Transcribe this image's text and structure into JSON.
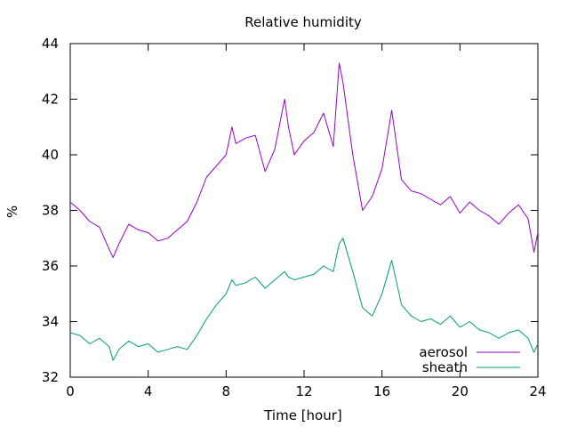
{
  "chart_data": {
    "type": "line",
    "title": "Relative humidity",
    "xlabel": "Time [hour]",
    "ylabel": "%",
    "xlim": [
      0,
      24
    ],
    "ylim": [
      32,
      44
    ],
    "xticks": [
      0,
      4,
      8,
      12,
      16,
      20,
      24
    ],
    "yticks": [
      32,
      34,
      36,
      38,
      40,
      42,
      44
    ],
    "grid": false,
    "legend_position": "bottom-right",
    "series": [
      {
        "name": "aerosol",
        "color": "#9400d3",
        "x": [
          0,
          0.5,
          1,
          1.5,
          2,
          2.2,
          2.5,
          3,
          3.5,
          4,
          4.5,
          5,
          5.5,
          6,
          6.5,
          7,
          7.5,
          8,
          8.3,
          8.5,
          9,
          9.5,
          10,
          10.5,
          11,
          11.2,
          11.5,
          12,
          12.5,
          13,
          13.5,
          13.8,
          14,
          14.5,
          15,
          15.5,
          16,
          16.5,
          17,
          17.5,
          18,
          18.5,
          19,
          19.5,
          20,
          20.5,
          21,
          21.5,
          22,
          22.5,
          23,
          23.5,
          23.8,
          24
        ],
        "y": [
          38.3,
          38.0,
          37.6,
          37.4,
          36.6,
          36.3,
          36.8,
          37.5,
          37.3,
          37.2,
          36.9,
          37.0,
          37.3,
          37.6,
          38.3,
          39.2,
          39.6,
          40.0,
          41.0,
          40.4,
          40.6,
          40.7,
          39.4,
          40.2,
          42.0,
          41.0,
          40.0,
          40.5,
          40.8,
          41.5,
          40.3,
          43.3,
          42.6,
          40.0,
          38.0,
          38.5,
          39.5,
          41.6,
          39.1,
          38.7,
          38.6,
          38.4,
          38.2,
          38.5,
          37.9,
          38.3,
          38.0,
          37.8,
          37.5,
          37.9,
          38.2,
          37.7,
          36.5,
          37.2
        ]
      },
      {
        "name": "sheath",
        "color": "#009e73",
        "x": [
          0,
          0.5,
          1,
          1.5,
          2,
          2.2,
          2.5,
          3,
          3.5,
          4,
          4.5,
          5,
          5.5,
          6,
          6.5,
          7,
          7.5,
          8,
          8.3,
          8.5,
          9,
          9.5,
          10,
          10.5,
          11,
          11.2,
          11.5,
          12,
          12.5,
          13,
          13.5,
          13.8,
          14,
          14.5,
          15,
          15.5,
          16,
          16.5,
          17,
          17.5,
          18,
          18.5,
          19,
          19.5,
          20,
          20.5,
          21,
          21.5,
          22,
          22.5,
          23,
          23.5,
          23.8,
          24
        ],
        "y": [
          33.6,
          33.5,
          33.2,
          33.4,
          33.1,
          32.6,
          33.0,
          33.3,
          33.1,
          33.2,
          32.9,
          33.0,
          33.1,
          33.0,
          33.5,
          34.1,
          34.6,
          35.0,
          35.5,
          35.3,
          35.4,
          35.6,
          35.2,
          35.5,
          35.8,
          35.6,
          35.5,
          35.6,
          35.7,
          36.0,
          35.8,
          36.8,
          37.0,
          35.8,
          34.5,
          34.2,
          35.0,
          36.2,
          34.6,
          34.2,
          34.0,
          34.1,
          33.9,
          34.2,
          33.8,
          34.0,
          33.7,
          33.6,
          33.4,
          33.6,
          33.7,
          33.4,
          32.9,
          33.2
        ]
      }
    ]
  }
}
